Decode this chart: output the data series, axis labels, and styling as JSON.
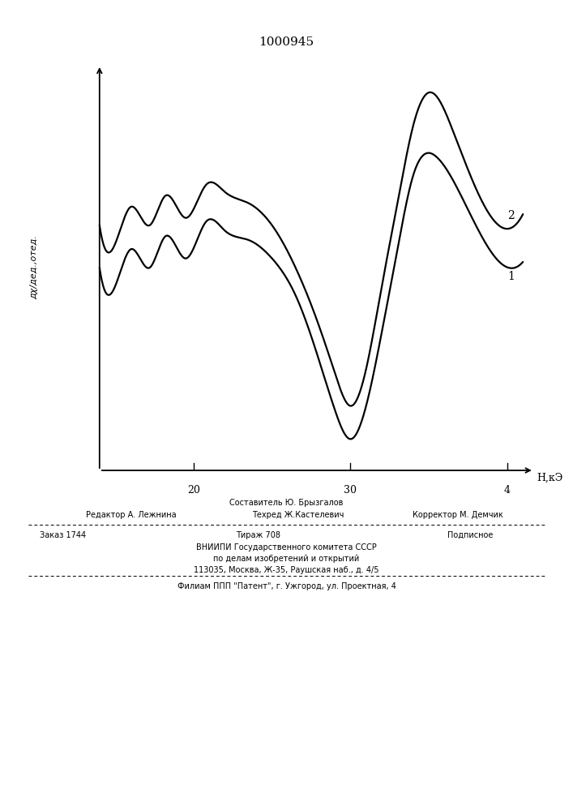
{
  "title": "1000945",
  "title_fontsize": 11,
  "curve1_label": "1",
  "curve2_label": "2",
  "background_color": "#ffffff",
  "line_color": "#000000",
  "line_width": 1.6,
  "footer_line1": "Составитель Ю. Брызгалов",
  "footer_editor": "Редактор А. Лежнина",
  "footer_tech": "Техред Ж.Кастелевич",
  "footer_corr": "Корректор М. Демчик",
  "footer_order": "Заказ 1744",
  "footer_print": "Тираж 708",
  "footer_sub": "Подписное",
  "footer_vnipi": "ВНИИПИ Государственного комитета СССР",
  "footer_dept": "по делам изобретений и открытий",
  "footer_addr": "113035, Москва, Ж-35, Раушская наб., д. 4/5",
  "footer_branch": "Филиам ППП \"Патент\", г. Ужгород, ул. Проектная, 4"
}
